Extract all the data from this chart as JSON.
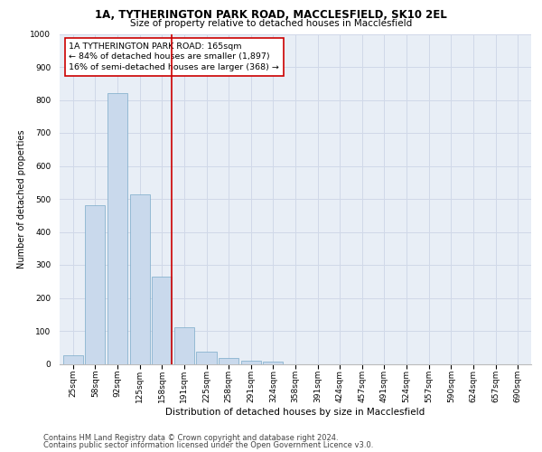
{
  "title1": "1A, TYTHERINGTON PARK ROAD, MACCLESFIELD, SK10 2EL",
  "title2": "Size of property relative to detached houses in Macclesfield",
  "xlabel": "Distribution of detached houses by size in Macclesfield",
  "ylabel": "Number of detached properties",
  "bar_color": "#c9d9ec",
  "bar_edgecolor": "#7aaac8",
  "bar_linewidth": 0.5,
  "vline_color": "#cc0000",
  "annotation_text": "1A TYTHERINGTON PARK ROAD: 165sqm\n← 84% of detached houses are smaller (1,897)\n16% of semi-detached houses are larger (368) →",
  "annotation_box_color": "#ffffff",
  "annotation_box_edgecolor": "#cc0000",
  "categories": [
    "25sqm",
    "58sqm",
    "92sqm",
    "125sqm",
    "158sqm",
    "191sqm",
    "225sqm",
    "258sqm",
    "291sqm",
    "324sqm",
    "358sqm",
    "391sqm",
    "424sqm",
    "457sqm",
    "491sqm",
    "524sqm",
    "557sqm",
    "590sqm",
    "624sqm",
    "657sqm",
    "690sqm"
  ],
  "values": [
    25,
    480,
    820,
    515,
    265,
    110,
    38,
    18,
    10,
    7,
    0,
    0,
    0,
    0,
    0,
    0,
    0,
    0,
    0,
    0,
    0
  ],
  "ylim": [
    0,
    1000
  ],
  "yticks": [
    0,
    100,
    200,
    300,
    400,
    500,
    600,
    700,
    800,
    900,
    1000
  ],
  "grid_color": "#d0d8e8",
  "bg_color": "#e8eef6",
  "footer1": "Contains HM Land Registry data © Crown copyright and database right 2024.",
  "footer2": "Contains public sector information licensed under the Open Government Licence v3.0.",
  "title1_fontsize": 8.5,
  "title2_fontsize": 7.5,
  "xlabel_fontsize": 7.5,
  "ylabel_fontsize": 7,
  "tick_fontsize": 6.5,
  "annot_fontsize": 6.8,
  "footer_fontsize": 6.0
}
